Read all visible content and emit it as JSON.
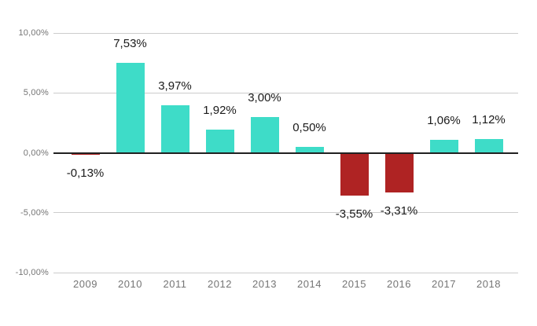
{
  "chart_data": {
    "type": "bar",
    "title": "",
    "xlabel": "",
    "ylabel": "",
    "categories": [
      "2009",
      "2010",
      "2011",
      "2012",
      "2013",
      "2014",
      "2015",
      "2016",
      "2017",
      "2018"
    ],
    "values": [
      -0.13,
      7.53,
      3.97,
      1.92,
      3.0,
      0.5,
      -3.55,
      -3.31,
      1.06,
      1.12
    ],
    "value_labels": [
      "-0,13%",
      "7,53%",
      "3,97%",
      "1,92%",
      "3,00%",
      "0,50%",
      "-3,55%",
      "-3,31%",
      "1,06%",
      "1,12%"
    ],
    "ylim": [
      -10,
      10
    ],
    "y_ticks": [
      {
        "value": 10,
        "label": "10,00%"
      },
      {
        "value": 5,
        "label": "5,00%"
      },
      {
        "value": 0,
        "label": "0,00%"
      },
      {
        "value": -5,
        "label": "-5,00%"
      },
      {
        "value": -10,
        "label": "-10,00%"
      }
    ],
    "grid": true,
    "legend": "none",
    "colors": {
      "positive": "#3EDCC8",
      "negative": "#AF2323",
      "gridline": "#CCCCCC",
      "zero_line": "#212121",
      "axis_label": "#757575",
      "annotation": "#1A1A1A",
      "background": "#FFFFFF"
    }
  }
}
